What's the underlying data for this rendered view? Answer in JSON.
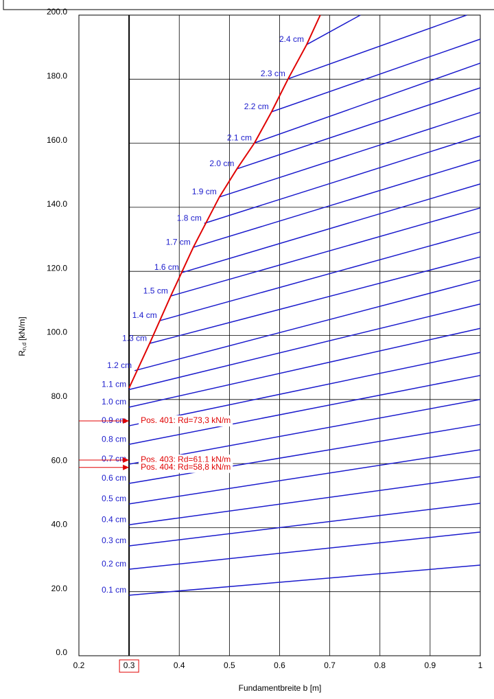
{
  "chart_data": {
    "type": "line",
    "xlabel": "Fundamentbreite b [m]",
    "ylabel": {
      "symbol": "R",
      "subscript": "n,d",
      "unit": "[kN/m]"
    },
    "xlim": [
      0.2,
      1.0
    ],
    "ylim": [
      0,
      200
    ],
    "xticks": [
      0.2,
      0.3,
      0.4,
      0.5,
      0.6,
      0.7,
      0.8,
      0.9,
      1.0
    ],
    "yticks": [
      {
        "value": 0,
        "label": "0.0"
      },
      {
        "value": 20,
        "label": "20.0"
      },
      {
        "value": 40,
        "label": "40.0"
      },
      {
        "value": 60,
        "label": "60.0"
      },
      {
        "value": 80,
        "label": "80.0"
      },
      {
        "value": 100,
        "label": "100.0"
      },
      {
        "value": 120,
        "label": "120.0"
      },
      {
        "value": 140,
        "label": "140.0"
      },
      {
        "value": 160,
        "label": "160.0"
      },
      {
        "value": 180,
        "label": "180.0"
      },
      {
        "value": 200,
        "label": "200.0"
      }
    ],
    "grid": true,
    "grid_xstart": 0.3,
    "highlight_xtick": 0.3,
    "line_color": "#1a1acc",
    "boundary_color": "#e00000",
    "series": [
      {
        "name": "0.1 cm",
        "x": [
          0.3,
          1.0
        ],
        "values": [
          18.9,
          28.3
        ]
      },
      {
        "name": "0.2 cm",
        "x": [
          0.3,
          1.0
        ],
        "values": [
          27.0,
          38.6
        ]
      },
      {
        "name": "0.3 cm",
        "x": [
          0.3,
          1.0
        ],
        "values": [
          34.3,
          47.6
        ]
      },
      {
        "name": "0.4 cm",
        "x": [
          0.3,
          1.0
        ],
        "values": [
          40.9,
          55.9
        ]
      },
      {
        "name": "0.5 cm",
        "x": [
          0.3,
          1.0
        ],
        "values": [
          47.4,
          64.3
        ]
      },
      {
        "name": "0.6 cm",
        "x": [
          0.3,
          1.0
        ],
        "values": [
          53.8,
          72.2
        ]
      },
      {
        "name": "0.7 cm",
        "x": [
          0.3,
          1.0
        ],
        "values": [
          59.8,
          80.0
        ]
      },
      {
        "name": "0.8 cm",
        "x": [
          0.3,
          1.0
        ],
        "values": [
          66.0,
          87.5
        ]
      },
      {
        "name": "0.9 cm",
        "x": [
          0.3,
          1.0
        ],
        "values": [
          71.8,
          94.7
        ]
      },
      {
        "name": "1.0 cm",
        "x": [
          0.3,
          1.0
        ],
        "values": [
          77.6,
          102.2
        ]
      },
      {
        "name": "1.1 cm",
        "x": [
          0.3,
          1.0
        ],
        "values": [
          83.1,
          109.8
        ]
      },
      {
        "name": "1.2 cm",
        "x": [
          0.311,
          1.0
        ],
        "values": [
          89.0,
          117.3
        ]
      },
      {
        "name": "1.3 cm",
        "x": [
          0.341,
          1.0
        ],
        "values": [
          97.5,
          124.5
        ]
      },
      {
        "name": "1.4 cm",
        "x": [
          0.361,
          1.0
        ],
        "values": [
          104.6,
          132.3
        ]
      },
      {
        "name": "1.5 cm",
        "x": [
          0.383,
          1.0
        ],
        "values": [
          112.3,
          139.8
        ]
      },
      {
        "name": "1.6 cm",
        "x": [
          0.405,
          1.0
        ],
        "values": [
          119.6,
          147.3
        ]
      },
      {
        "name": "1.7 cm",
        "x": [
          0.428,
          1.0
        ],
        "values": [
          127.5,
          154.8
        ]
      },
      {
        "name": "1.8 cm",
        "x": [
          0.45,
          1.0
        ],
        "values": [
          135.0,
          162.3
        ]
      },
      {
        "name": "1.9 cm",
        "x": [
          0.48,
          1.0
        ],
        "values": [
          143.2,
          169.6
        ]
      },
      {
        "name": "2.0 cm",
        "x": [
          0.515,
          1.0
        ],
        "values": [
          152.0,
          177.3
        ]
      },
      {
        "name": "2.1 cm",
        "x": [
          0.55,
          1.0
        ],
        "values": [
          160.1,
          185.0
        ]
      },
      {
        "name": "2.2 cm",
        "x": [
          0.584,
          1.0
        ],
        "values": [
          169.8,
          192.5
        ]
      },
      {
        "name": "2.3 cm",
        "x": [
          0.617,
          0.973
        ],
        "values": [
          180.1,
          200
        ]
      },
      {
        "name": "2.4 cm",
        "x": [
          0.654,
          0.761
        ],
        "values": [
          190.8,
          200
        ]
      }
    ],
    "boundary": {
      "x": [
        0.3,
        0.341,
        0.383,
        0.428,
        0.48,
        0.515,
        0.55,
        0.584,
        0.617,
        0.654,
        0.681
      ],
      "values": [
        83.6,
        97.5,
        112.3,
        127.5,
        143.2,
        152.0,
        160.1,
        169.8,
        180.1,
        190.8,
        200
      ]
    },
    "annotations": [
      {
        "text": "Pos. 401: Rd=73,3 kN/m",
        "value": 73.3
      },
      {
        "text": "Pos. 403: Rd=61,1 kN/m",
        "value": 61.1
      },
      {
        "text": "Pos. 404: Rd=58,8 kN/m",
        "value": 58.8
      }
    ]
  }
}
